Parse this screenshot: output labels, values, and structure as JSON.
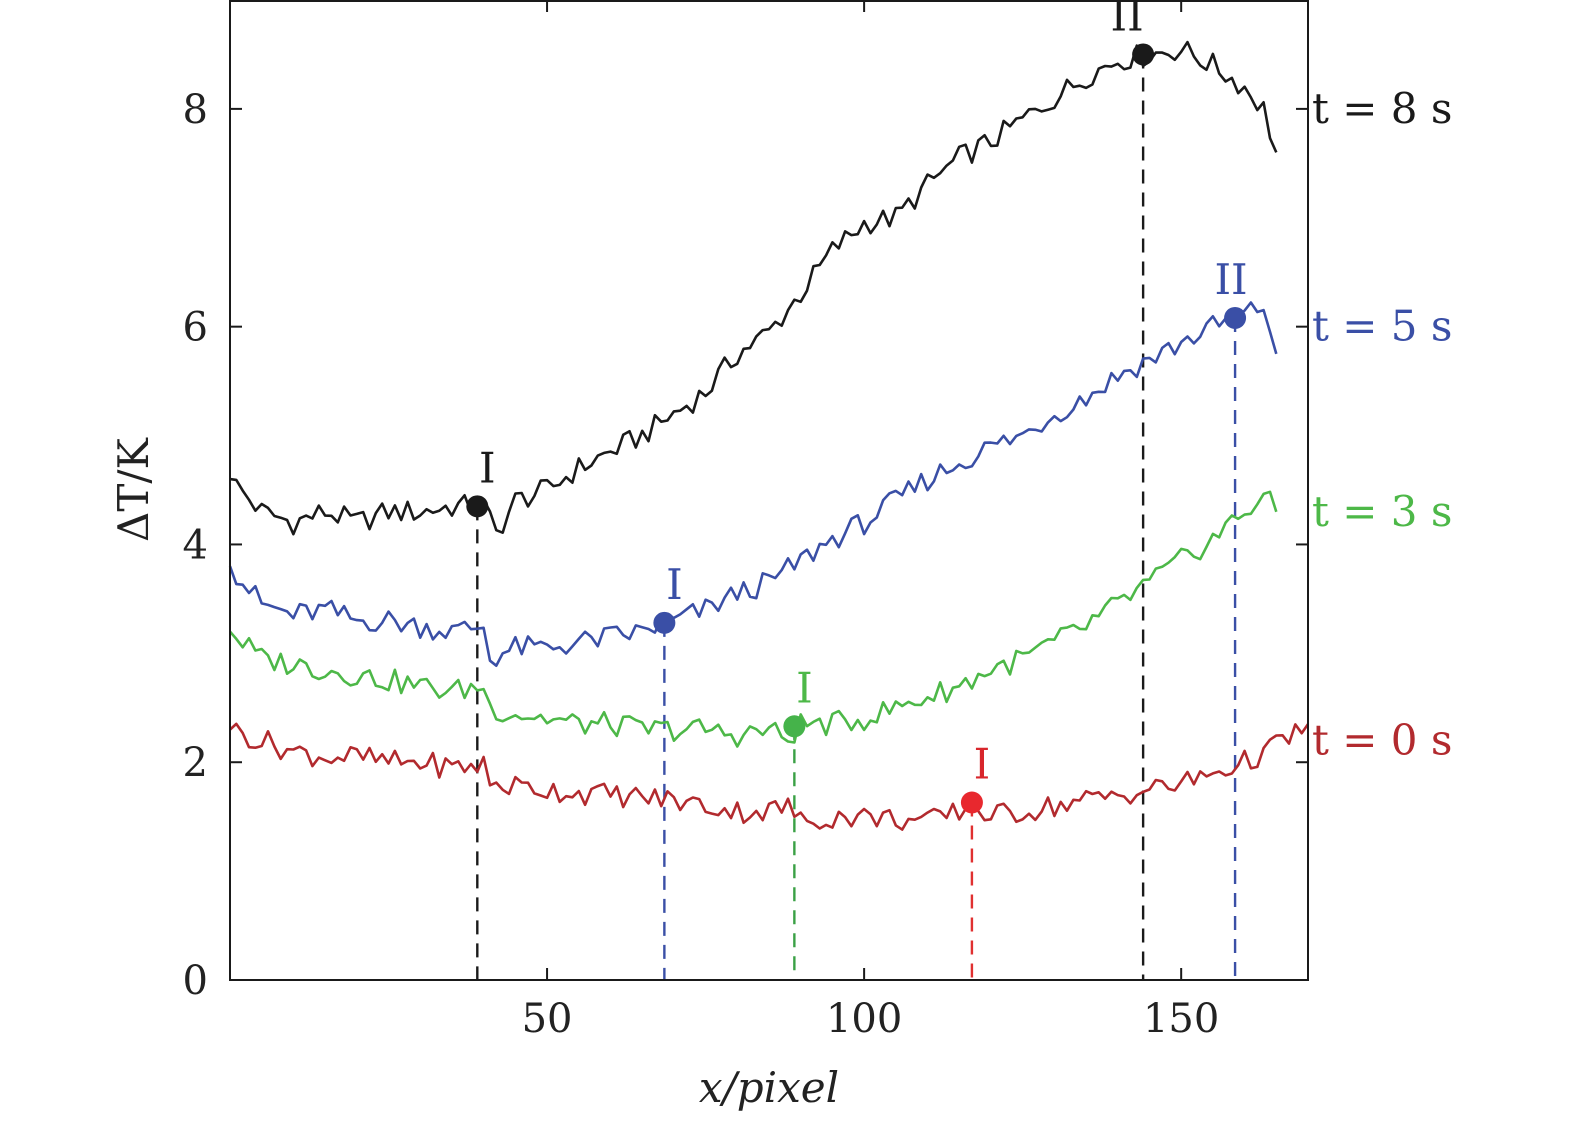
{
  "chart_data": {
    "type": "line",
    "xlabel": "x/pixel",
    "ylabel": "ΔT/K",
    "xlim": [
      0,
      170
    ],
    "ylim": [
      0,
      9
    ],
    "xticks": [
      50,
      100,
      150
    ],
    "yticks": [
      0,
      2,
      4,
      6,
      8
    ],
    "xtick_labels": [
      "50",
      "100",
      "150"
    ],
    "ytick_labels": [
      "0",
      "2",
      "4",
      "6",
      "8"
    ],
    "grid": false,
    "series": [
      {
        "name": "t = 8 s",
        "color": "#1a1a1a",
        "x": [
          0,
          5,
          10,
          15,
          20,
          25,
          30,
          35,
          40,
          42,
          45,
          50,
          55,
          60,
          65,
          70,
          75,
          80,
          85,
          90,
          95,
          100,
          105,
          110,
          115,
          120,
          125,
          130,
          135,
          140,
          145,
          150,
          155,
          160,
          163,
          165
        ],
        "y": [
          4.6,
          4.3,
          4.2,
          4.3,
          4.2,
          4.3,
          4.3,
          4.35,
          4.35,
          4.1,
          4.4,
          4.5,
          4.7,
          4.85,
          5.0,
          5.2,
          5.4,
          5.75,
          5.95,
          6.3,
          6.7,
          6.95,
          7.0,
          7.3,
          7.55,
          7.7,
          7.9,
          8.1,
          8.3,
          8.45,
          8.5,
          8.55,
          8.4,
          8.2,
          8.0,
          7.6
        ],
        "markers": [
          {
            "x": 39,
            "y": 4.35,
            "label": "I"
          },
          {
            "x": 144,
            "y": 8.5,
            "label": "II"
          }
        ]
      },
      {
        "name": "t = 5 s",
        "color": "#3a4fa6",
        "x": [
          0,
          5,
          10,
          15,
          20,
          25,
          30,
          35,
          40,
          41,
          45,
          50,
          55,
          60,
          65,
          70,
          75,
          80,
          85,
          90,
          95,
          100,
          105,
          110,
          115,
          120,
          125,
          130,
          135,
          140,
          145,
          150,
          155,
          160,
          163,
          165
        ],
        "y": [
          3.8,
          3.45,
          3.35,
          3.4,
          3.3,
          3.3,
          3.25,
          3.2,
          3.25,
          2.95,
          3.05,
          3.05,
          3.1,
          3.15,
          3.2,
          3.3,
          3.4,
          3.55,
          3.65,
          3.85,
          4.05,
          4.2,
          4.4,
          4.6,
          4.75,
          4.9,
          5.0,
          5.2,
          5.35,
          5.55,
          5.7,
          5.85,
          6.0,
          6.1,
          6.2,
          5.75
        ],
        "markers": [
          {
            "x": 68.5,
            "y": 3.28,
            "label": "I"
          },
          {
            "x": 158.5,
            "y": 6.08,
            "label": "II"
          }
        ]
      },
      {
        "name": "t = 3 s",
        "color": "#4db848",
        "x": [
          0,
          5,
          10,
          15,
          20,
          25,
          30,
          35,
          40,
          41,
          45,
          50,
          55,
          60,
          65,
          70,
          75,
          80,
          85,
          88,
          90,
          95,
          100,
          105,
          110,
          115,
          120,
          125,
          130,
          135,
          140,
          145,
          150,
          155,
          160,
          163,
          165
        ],
        "y": [
          3.2,
          2.95,
          2.9,
          2.85,
          2.8,
          2.75,
          2.7,
          2.65,
          2.7,
          2.5,
          2.45,
          2.4,
          2.35,
          2.35,
          2.3,
          2.3,
          2.3,
          2.25,
          2.3,
          2.2,
          2.35,
          2.35,
          2.4,
          2.5,
          2.6,
          2.7,
          2.85,
          2.95,
          3.1,
          3.25,
          3.45,
          3.65,
          3.85,
          4.05,
          4.3,
          4.45,
          4.3
        ],
        "markers": [
          {
            "x": 89,
            "y": 2.33,
            "label": "I"
          }
        ]
      },
      {
        "name": "t = 0 s",
        "color": "#b22a2e",
        "x": [
          0,
          5,
          10,
          15,
          20,
          25,
          30,
          35,
          40,
          41,
          45,
          50,
          55,
          60,
          65,
          70,
          75,
          80,
          85,
          88,
          90,
          95,
          100,
          105,
          110,
          115,
          117,
          120,
          125,
          130,
          135,
          140,
          145,
          150,
          155,
          160,
          165,
          170
        ],
        "y": [
          2.3,
          2.2,
          2.1,
          2.05,
          2.05,
          2.0,
          2.0,
          1.95,
          1.98,
          1.8,
          1.78,
          1.75,
          1.72,
          1.7,
          1.68,
          1.65,
          1.6,
          1.55,
          1.55,
          1.6,
          1.45,
          1.5,
          1.5,
          1.48,
          1.45,
          1.55,
          1.62,
          1.5,
          1.55,
          1.6,
          1.65,
          1.7,
          1.75,
          1.8,
          1.9,
          2.0,
          2.15,
          2.35
        ],
        "markers": [
          {
            "x": 117,
            "y": 1.63,
            "label": "I"
          }
        ]
      }
    ]
  }
}
